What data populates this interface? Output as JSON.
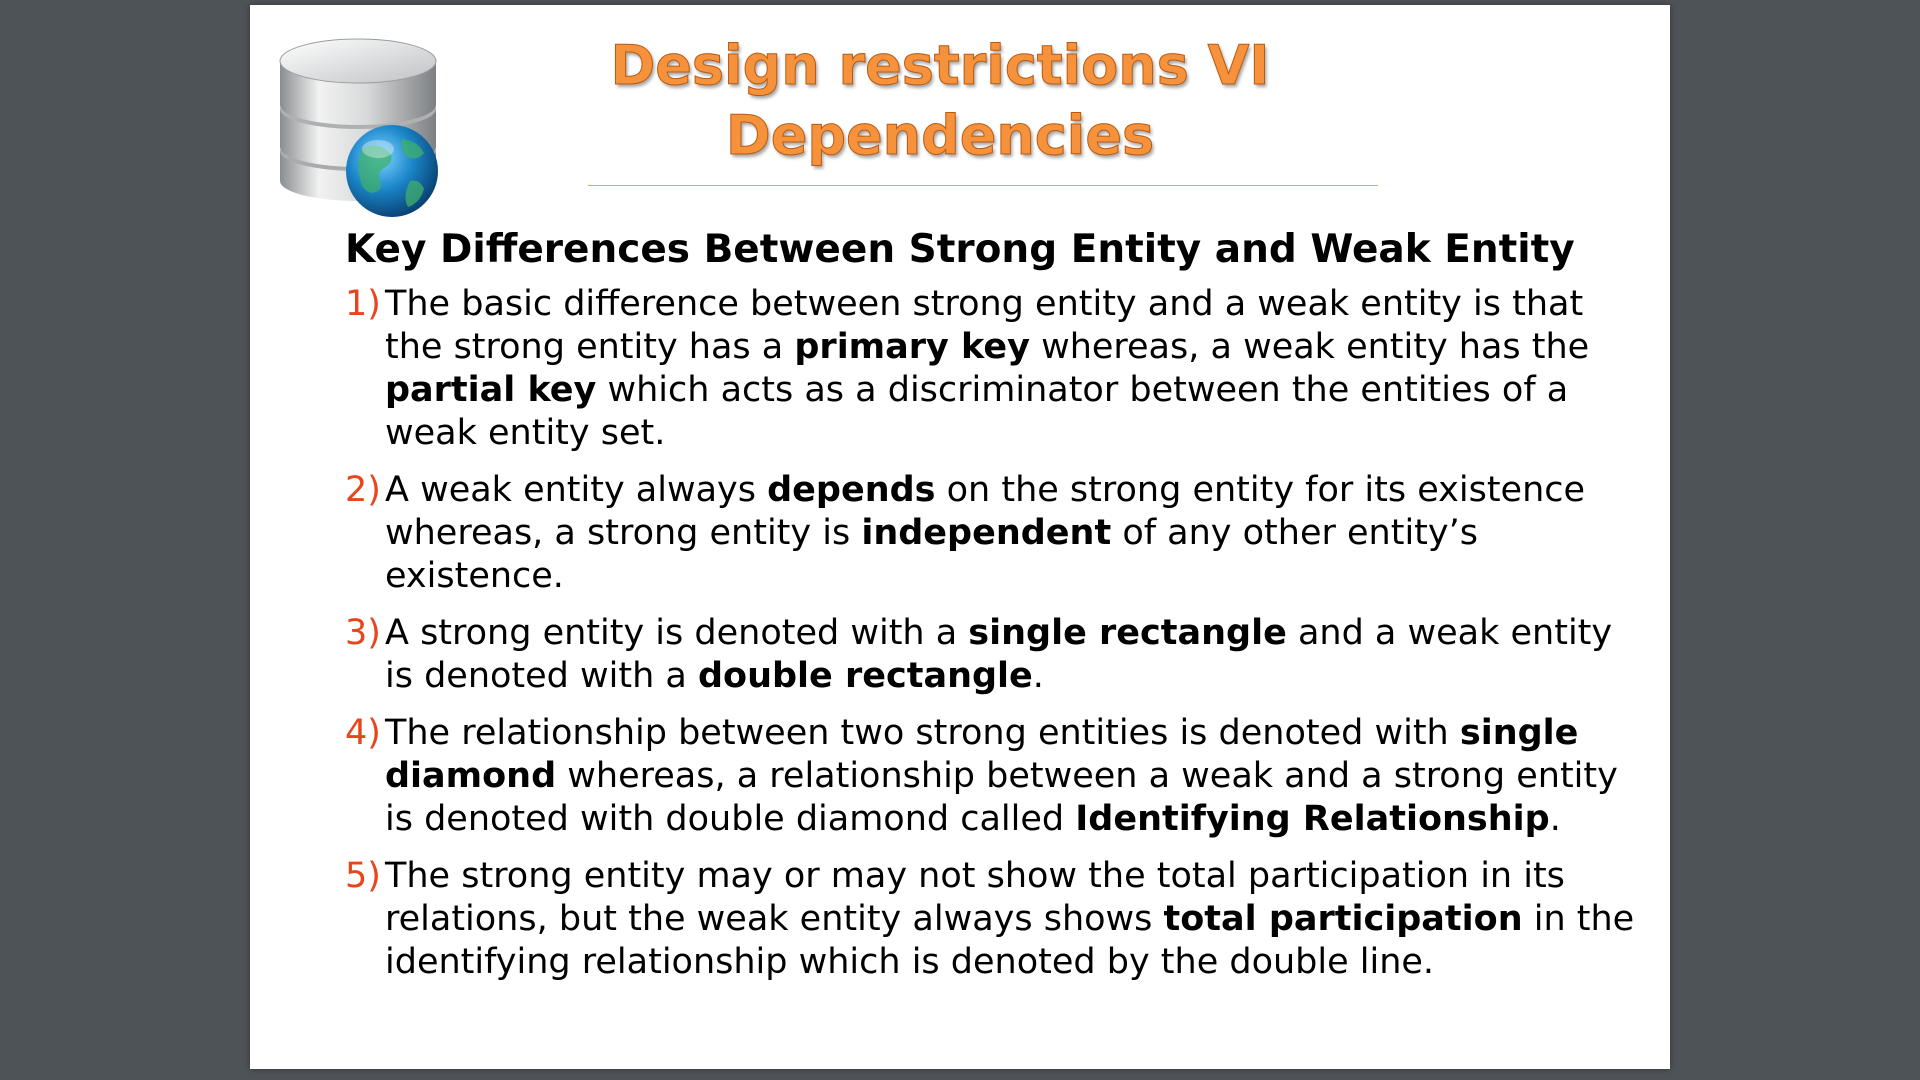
{
  "slide": {
    "title_line1": "Design restrictions VI",
    "title_line2": "Dependencies",
    "logo_icon": "database-globe-icon",
    "colors": {
      "title": "#f6923b",
      "number": "#e8451c",
      "background": "#4e5357"
    },
    "heading": "Key Differences Between Strong Entity and Weak Entity",
    "points": [
      {
        "num": "1)",
        "segments": [
          {
            "t": " The basic difference between strong entity and a weak entity is that the strong entity has a ",
            "b": false
          },
          {
            "t": "primary key",
            "b": true
          },
          {
            "t": " whereas, a weak entity has the ",
            "b": false
          },
          {
            "t": "partial key",
            "b": true
          },
          {
            "t": " which acts as a discriminator between the entities of a weak entity set.",
            "b": false
          }
        ]
      },
      {
        "num": "2)",
        "segments": [
          {
            "t": " A weak entity always ",
            "b": false
          },
          {
            "t": "depends",
            "b": true
          },
          {
            "t": " on the strong entity for its existence whereas, a strong entity is ",
            "b": false
          },
          {
            "t": "independent",
            "b": true
          },
          {
            "t": " of any other entity’s existence.",
            "b": false
          }
        ]
      },
      {
        "num": "3)",
        "segments": [
          {
            "t": "A strong entity is denoted with a ",
            "b": false
          },
          {
            "t": "single rectangle",
            "b": true
          },
          {
            "t": " and a weak entity is denoted with a ",
            "b": false
          },
          {
            "t": "double rectangle",
            "b": true
          },
          {
            "t": ".",
            "b": false
          }
        ]
      },
      {
        "num": "4)",
        "segments": [
          {
            "t": "The relationship between two strong entities is denoted with ",
            "b": false
          },
          {
            "t": "single diamond",
            "b": true
          },
          {
            "t": " whereas, a relationship between a weak and a strong entity is denoted with double diamond called ",
            "b": false
          },
          {
            "t": "Identifying Relationship",
            "b": true
          },
          {
            "t": ".",
            "b": false
          }
        ]
      },
      {
        "num": "5)",
        "segments": [
          {
            "t": "The strong entity may or may not show the total participation in its relations, but the weak entity always shows ",
            "b": false
          },
          {
            "t": "total participation",
            "b": true
          },
          {
            "t": " in the identifying relationship which is denoted by the double line.",
            "b": false
          }
        ]
      }
    ]
  }
}
